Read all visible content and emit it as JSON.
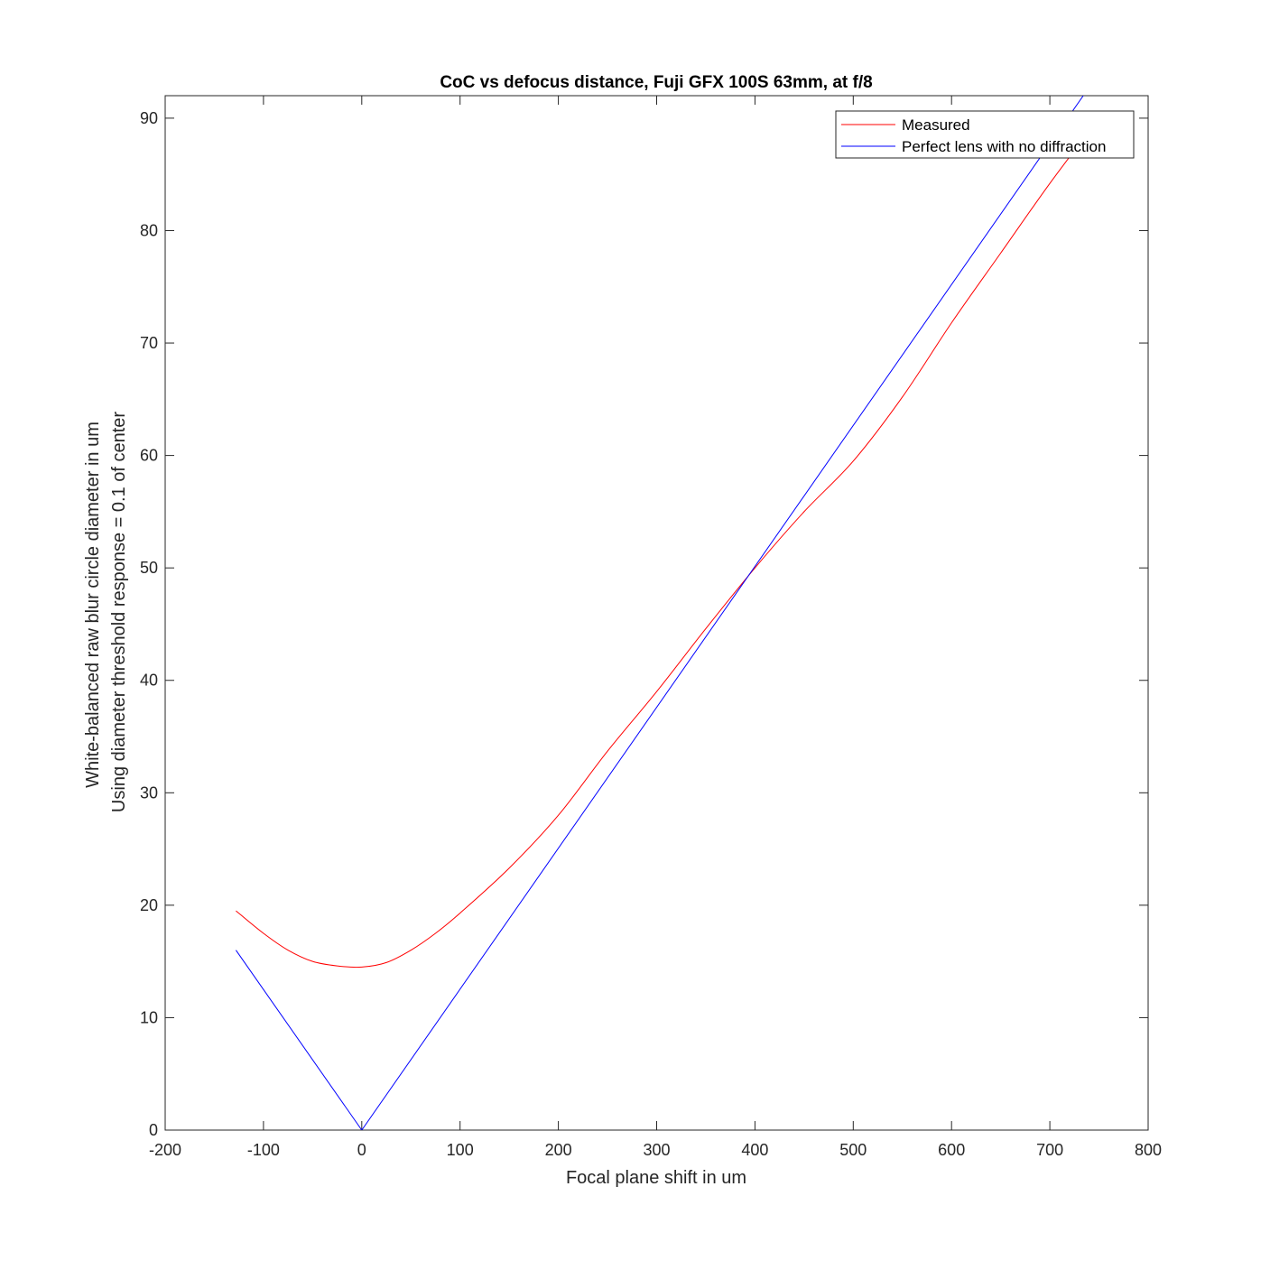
{
  "chart_data": {
    "type": "line",
    "title": "CoC vs defocus distance, Fuji GFX 100S 63mm, at f/8",
    "xlabel": "Focal plane shift in um",
    "ylabel_lines": [
      "White-balanced raw blur circle diameter in um",
      "Using diameter threshold response = 0.1 of center"
    ],
    "xlim": [
      -200,
      800
    ],
    "ylim": [
      0,
      92
    ],
    "xticks": [
      -200,
      -100,
      0,
      100,
      200,
      300,
      400,
      500,
      600,
      700,
      800
    ],
    "yticks": [
      0,
      10,
      20,
      30,
      40,
      50,
      60,
      70,
      80,
      90
    ],
    "grid": false,
    "legend_position": "top-right",
    "series": [
      {
        "name": "Measured",
        "color": "#ff0000",
        "x": [
          -128,
          -100,
          -75,
          -50,
          -25,
          0,
          25,
          50,
          75,
          100,
          150,
          200,
          250,
          300,
          350,
          400,
          450,
          500,
          550,
          600,
          650,
          700,
          750
        ],
        "y": [
          19.5,
          17.5,
          16.0,
          15.0,
          14.6,
          14.5,
          14.9,
          16.0,
          17.5,
          19.3,
          23.3,
          28.0,
          33.7,
          39.0,
          44.6,
          50.0,
          55.0,
          59.5,
          65.2,
          71.8,
          78.0,
          84.2,
          90.0
        ]
      },
      {
        "name": "Perfect lens with no diffraction",
        "color": "#0000ff",
        "x": [
          -128,
          0,
          734
        ],
        "y": [
          16.0,
          0,
          92
        ]
      }
    ]
  }
}
